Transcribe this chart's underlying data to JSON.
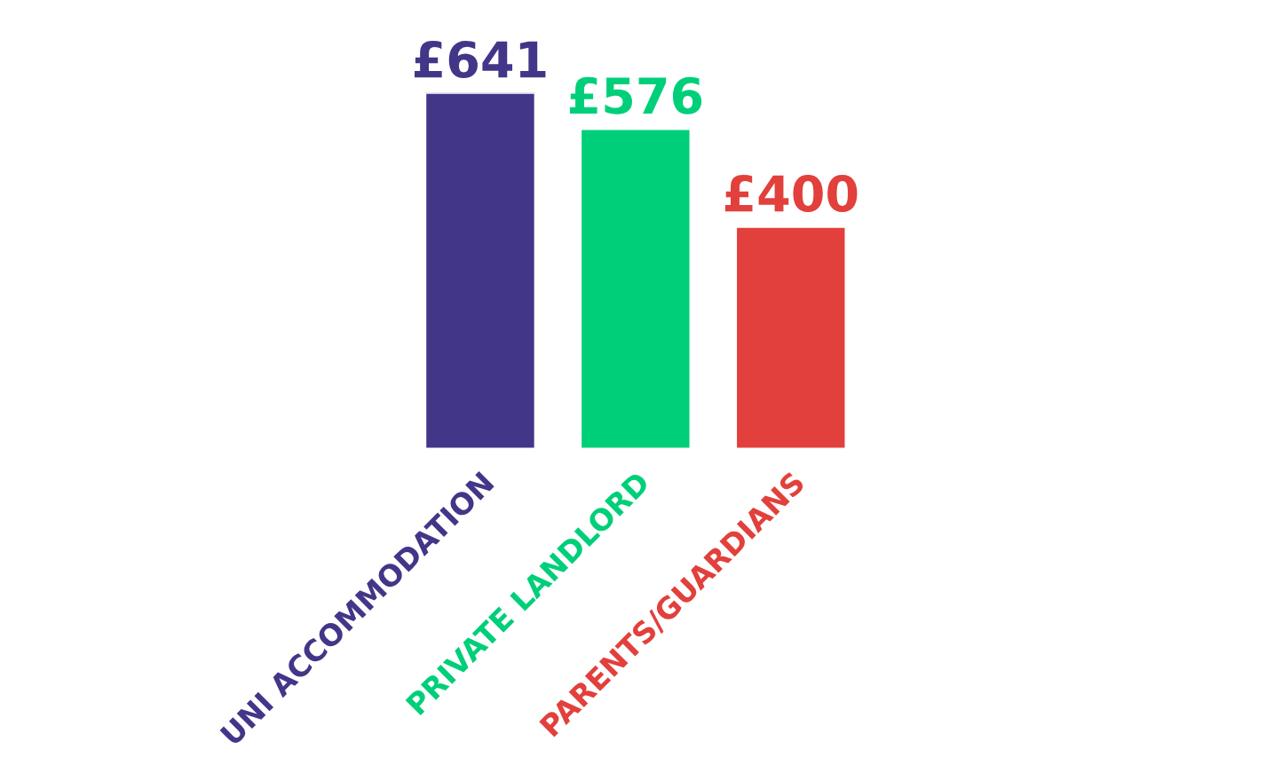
{
  "chart_data": {
    "type": "bar",
    "categories": [
      "UNI ACCOMMODATION",
      "PRIVATE LANDLORD",
      "PARENTS/GUARDIANS"
    ],
    "values": [
      641,
      576,
      400
    ],
    "colors": [
      "#423689",
      "#00cf7a",
      "#e2403c"
    ],
    "value_labels": [
      "£641",
      "£576",
      "£400"
    ]
  }
}
